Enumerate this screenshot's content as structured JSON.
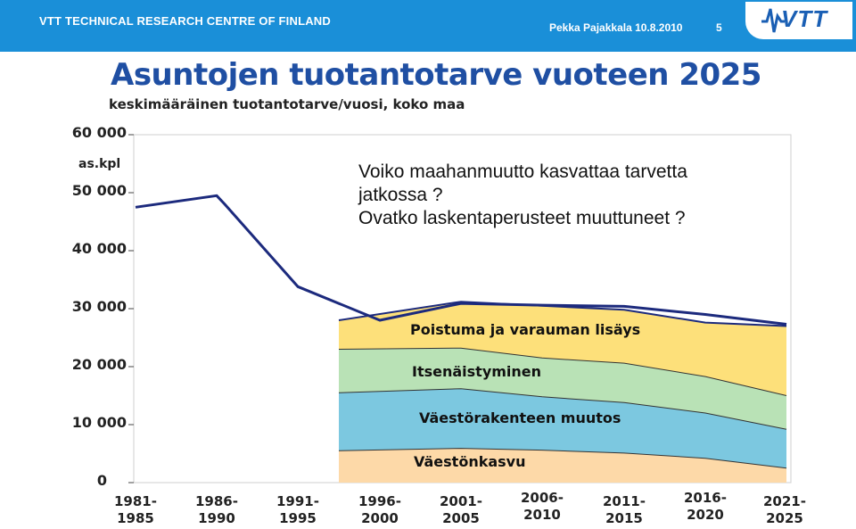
{
  "header": {
    "org": "VTT TECHNICAL RESEARCH CENTRE OF FINLAND",
    "author_date": "Pekka Pajakkala 10.8.2010",
    "page_number": "5",
    "logo_text": "VTT",
    "color": "#1a8fd8"
  },
  "chart_data": {
    "type": "area",
    "title": "Asuntojen tuotantotarve vuoteen 2025",
    "subtitle": "keskimääräinen tuotantotarve/vuosi, koko maa",
    "ylabel": "as.kpl",
    "ylim": [
      0,
      60000
    ],
    "yticks": [
      "60 000",
      "50 000",
      "40 000",
      "30 000",
      "20 000",
      "10 000",
      "0"
    ],
    "categories": [
      "1981-\n1985",
      "1986-\n1990",
      "1991-\n1995",
      "1996-\n2000",
      "2001-\n2005",
      "2006-\n2010",
      "2011-\n2015",
      "2016-\n2020",
      "2021-\n2025"
    ],
    "annotation": [
      "Voiko maahanmuutto kasvattaa tarvetta",
      "jatkossa ?",
      "Ovatko laskentaperusteet muuttuneet ?"
    ],
    "series": [
      {
        "name": "Väestönkasvu",
        "color": "#fdd9a8",
        "x": [
          3.5,
          5,
          6,
          7,
          8,
          9
        ],
        "values": [
          5500,
          5900,
          5600,
          5100,
          4200,
          2500
        ]
      },
      {
        "name": "Väestörakenteen muutos",
        "color": "#7cc8e0",
        "x": [
          3.5,
          5,
          6,
          7,
          8,
          9
        ],
        "values": [
          10000,
          10300,
          9200,
          8700,
          7800,
          6700
        ]
      },
      {
        "name": "Itsenäistyminen",
        "color": "#b9e2b6",
        "x": [
          3.5,
          5,
          6,
          7,
          8,
          9
        ],
        "values": [
          7500,
          7000,
          6700,
          6800,
          6300,
          5800
        ]
      },
      {
        "name": "Poistuma ja varauman lisäys",
        "color": "#fde07a",
        "x": [
          3.5,
          5,
          6,
          7,
          8,
          9
        ],
        "values": [
          5000,
          8000,
          9000,
          9200,
          9300,
          12000
        ]
      }
    ],
    "total_line": {
      "color": "#1c2a7d",
      "x": [
        1,
        2,
        2.1,
        3,
        4,
        5,
        6,
        7,
        8,
        9
      ],
      "values": [
        47500,
        49500,
        48000,
        33800,
        28000,
        30900,
        30600,
        30400,
        29000,
        27300
      ]
    }
  }
}
